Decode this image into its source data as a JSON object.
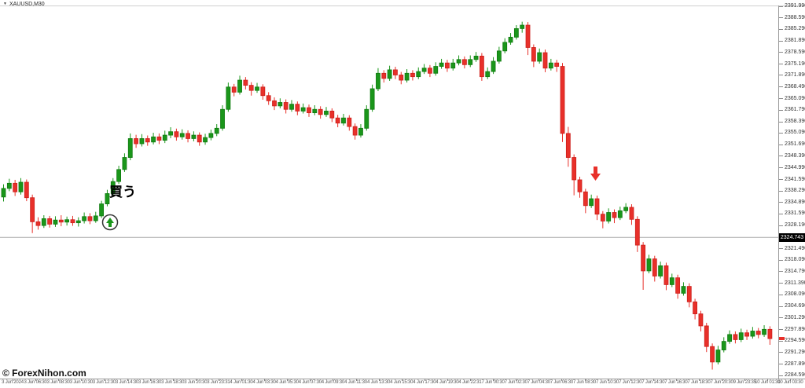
{
  "window": {
    "symbol_label": "XAUUSD,M30",
    "collapse_icon": "triangle-down-icon"
  },
  "watermark": "© ForexNihon.com",
  "annotations": {
    "buy_text": "買う",
    "buy_marker": "up-arrow-in-circle",
    "sell_marker": "down-arrow",
    "hline_price_label": "2324.743",
    "hline_price": 2324.743,
    "current_price_marker_price": 2295.3
  },
  "colors": {
    "bull_fill": "#1A961A",
    "bull_stroke": "#0F7A0F",
    "bear_fill": "#E8302A",
    "bear_stroke": "#CC1F1A",
    "hline": "#a8a8a8",
    "price_box_bg": "#000000",
    "price_box_text": "#ffffff",
    "marker_red": "#e8302a",
    "marker_circle_stroke": "#333333"
  },
  "chart_data": {
    "type": "candlestick",
    "title": "XAUUSD,M30",
    "symbol": "XAUUSD",
    "timeframe": "M30",
    "ylabel": "",
    "xlabel": "",
    "grid": false,
    "ylim": [
      2284.59,
      2391.99
    ],
    "y_ticks": [
      "2391.990",
      "2388.590",
      "2385.290",
      "2381.890",
      "2378.590",
      "2375.190",
      "2371.890",
      "2368.490",
      "2365.090",
      "2361.790",
      "2358.390",
      "2355.090",
      "2351.690",
      "2348.390",
      "2344.990",
      "2341.590",
      "2338.290",
      "2334.890",
      "2331.590",
      "2328.190",
      "2324.790",
      "2321.490",
      "2318.090",
      "2314.790",
      "2311.390",
      "2308.090",
      "2304.690",
      "2301.290",
      "2297.890",
      "2294.590",
      "2291.290",
      "2287.890",
      "2284.590"
    ],
    "x_ticks": [
      "3 Jun 2024",
      "3 Jun 06:30",
      "3 Jun 08:30",
      "3 Jun 10:30",
      "3 Jun 12:30",
      "3 Jun 14:30",
      "3 Jun 16:30",
      "3 Jun 18:30",
      "3 Jun 20:30",
      "3 Jun 23:31",
      "4 Jun 01:30",
      "4 Jun 03:30",
      "4 Jun 05:30",
      "4 Jun 07:30",
      "4 Jun 09:30",
      "4 Jun 11:30",
      "4 Jun 13:30",
      "4 Jun 15:30",
      "4 Jun 17:30",
      "4 Jun 19:30",
      "4 Jun 22:31",
      "7 Jun 00:30",
      "7 Jun 02:30",
      "7 Jun 04:30",
      "7 Jun 06:30",
      "7 Jun 08:30",
      "7 Jun 10:30",
      "7 Jun 12:30",
      "7 Jun 14:30",
      "7 Jun 16:30",
      "7 Jun 18:30",
      "7 Jun 20:30",
      "9 Jun 23:35",
      "10 Jun 01:30",
      "10 Jun 03:30"
    ],
    "ohlc": [
      [
        2336.5,
        2340.2,
        2335.2,
        2339.0
      ],
      [
        2339.0,
        2341.8,
        2338.2,
        2340.5
      ],
      [
        2340.5,
        2341.5,
        2336.8,
        2338.0
      ],
      [
        2338.0,
        2342.0,
        2337.2,
        2340.8
      ],
      [
        2340.8,
        2341.6,
        2335.3,
        2336.3
      ],
      [
        2336.3,
        2337.2,
        2326.0,
        2329.3
      ],
      [
        2329.3,
        2330.6,
        2327.0,
        2328.2
      ],
      [
        2328.2,
        2331.2,
        2327.5,
        2330.2
      ],
      [
        2330.2,
        2331.0,
        2327.6,
        2328.6
      ],
      [
        2328.6,
        2330.9,
        2327.8,
        2329.8
      ],
      [
        2329.8,
        2331.2,
        2328.0,
        2329.2
      ],
      [
        2329.2,
        2330.8,
        2328.2,
        2329.9
      ],
      [
        2329.9,
        2331.0,
        2328.1,
        2329.0
      ],
      [
        2329.0,
        2330.6,
        2327.9,
        2329.6
      ],
      [
        2329.6,
        2332.0,
        2328.8,
        2330.8
      ],
      [
        2330.8,
        2331.8,
        2328.6,
        2329.6
      ],
      [
        2329.6,
        2332.2,
        2329.0,
        2331.0
      ],
      [
        2331.0,
        2335.4,
        2330.4,
        2334.5
      ],
      [
        2334.5,
        2338.6,
        2333.8,
        2337.5
      ],
      [
        2337.5,
        2342.0,
        2336.8,
        2341.0
      ],
      [
        2341.0,
        2345.6,
        2340.3,
        2344.5
      ],
      [
        2344.5,
        2349.2,
        2343.8,
        2348.0
      ],
      [
        2348.0,
        2355.0,
        2347.2,
        2353.5
      ],
      [
        2353.5,
        2354.6,
        2350.8,
        2352.0
      ],
      [
        2352.0,
        2354.8,
        2351.2,
        2353.5
      ],
      [
        2353.5,
        2354.4,
        2351.4,
        2352.5
      ],
      [
        2352.5,
        2355.2,
        2351.8,
        2354.0
      ],
      [
        2354.0,
        2355.0,
        2351.9,
        2353.0
      ],
      [
        2353.0,
        2355.8,
        2352.2,
        2354.5
      ],
      [
        2354.5,
        2356.8,
        2353.6,
        2355.5
      ],
      [
        2355.5,
        2356.4,
        2352.9,
        2354.0
      ],
      [
        2354.0,
        2356.2,
        2353.2,
        2355.0
      ],
      [
        2355.0,
        2355.9,
        2352.4,
        2353.5
      ],
      [
        2353.5,
        2355.6,
        2352.7,
        2354.5
      ],
      [
        2354.5,
        2355.3,
        2351.4,
        2352.5
      ],
      [
        2352.5,
        2354.9,
        2351.7,
        2353.8
      ],
      [
        2353.8,
        2356.1,
        2353.0,
        2355.0
      ],
      [
        2355.0,
        2357.7,
        2354.2,
        2356.5
      ],
      [
        2356.5,
        2363.2,
        2355.8,
        2362.0
      ],
      [
        2362.0,
        2369.8,
        2361.3,
        2368.5
      ],
      [
        2368.5,
        2369.4,
        2365.8,
        2367.0
      ],
      [
        2367.0,
        2371.8,
        2366.3,
        2370.5
      ],
      [
        2370.5,
        2371.4,
        2367.8,
        2369.0
      ],
      [
        2369.0,
        2369.9,
        2366.0,
        2367.5
      ],
      [
        2367.5,
        2369.7,
        2366.8,
        2368.5
      ],
      [
        2368.5,
        2369.3,
        2364.8,
        2366.0
      ],
      [
        2366.0,
        2367.0,
        2363.3,
        2364.5
      ],
      [
        2364.5,
        2365.5,
        2361.8,
        2363.0
      ],
      [
        2363.0,
        2365.2,
        2362.3,
        2364.0
      ],
      [
        2364.0,
        2364.9,
        2360.8,
        2362.0
      ],
      [
        2362.0,
        2364.7,
        2361.3,
        2363.5
      ],
      [
        2363.5,
        2364.3,
        2360.3,
        2361.5
      ],
      [
        2361.5,
        2363.7,
        2360.8,
        2362.5
      ],
      [
        2362.5,
        2363.4,
        2359.8,
        2361.0
      ],
      [
        2361.0,
        2363.2,
        2360.3,
        2362.0
      ],
      [
        2362.0,
        2362.9,
        2359.3,
        2360.5
      ],
      [
        2360.5,
        2362.7,
        2359.8,
        2361.5
      ],
      [
        2361.5,
        2362.3,
        2358.3,
        2359.5
      ],
      [
        2359.5,
        2360.4,
        2356.8,
        2358.0
      ],
      [
        2358.0,
        2360.7,
        2357.3,
        2359.5
      ],
      [
        2359.5,
        2360.3,
        2355.8,
        2357.0
      ],
      [
        2357.0,
        2357.9,
        2353.2,
        2354.5
      ],
      [
        2354.5,
        2357.7,
        2353.8,
        2356.5
      ],
      [
        2356.5,
        2363.2,
        2355.8,
        2362.0
      ],
      [
        2362.0,
        2369.2,
        2361.3,
        2368.0
      ],
      [
        2368.0,
        2374.0,
        2367.3,
        2372.5
      ],
      [
        2372.5,
        2373.4,
        2369.8,
        2371.0
      ],
      [
        2371.0,
        2374.7,
        2370.3,
        2373.5
      ],
      [
        2373.5,
        2374.4,
        2370.8,
        2372.0
      ],
      [
        2372.0,
        2372.9,
        2369.3,
        2370.5
      ],
      [
        2370.5,
        2373.7,
        2369.8,
        2372.5
      ],
      [
        2372.5,
        2373.4,
        2370.4,
        2371.5
      ],
      [
        2371.5,
        2374.2,
        2370.8,
        2373.0
      ],
      [
        2373.0,
        2375.2,
        2372.3,
        2374.0
      ],
      [
        2374.0,
        2374.9,
        2371.4,
        2372.5
      ],
      [
        2372.5,
        2375.7,
        2371.8,
        2374.5
      ],
      [
        2374.5,
        2376.7,
        2373.8,
        2375.5
      ],
      [
        2375.5,
        2376.4,
        2372.9,
        2374.0
      ],
      [
        2374.0,
        2376.7,
        2373.3,
        2375.5
      ],
      [
        2375.5,
        2377.7,
        2374.8,
        2376.5
      ],
      [
        2376.5,
        2377.4,
        2373.9,
        2375.0
      ],
      [
        2375.0,
        2377.7,
        2374.3,
        2376.5
      ],
      [
        2376.5,
        2378.7,
        2375.8,
        2377.5
      ],
      [
        2377.5,
        2378.4,
        2370.3,
        2371.5
      ],
      [
        2371.5,
        2374.2,
        2370.8,
        2373.0
      ],
      [
        2373.0,
        2377.2,
        2372.3,
        2376.0
      ],
      [
        2376.0,
        2380.2,
        2375.3,
        2379.0
      ],
      [
        2379.0,
        2382.7,
        2378.3,
        2381.5
      ],
      [
        2381.5,
        2384.2,
        2380.8,
        2383.0
      ],
      [
        2383.0,
        2386.5,
        2382.3,
        2385.5
      ],
      [
        2385.5,
        2387.5,
        2384.3,
        2386.5
      ],
      [
        2386.5,
        2387.4,
        2377.8,
        2380.0
      ],
      [
        2380.0,
        2380.9,
        2374.3,
        2376.0
      ],
      [
        2376.0,
        2379.7,
        2375.3,
        2378.5
      ],
      [
        2378.5,
        2379.4,
        2372.8,
        2374.0
      ],
      [
        2374.0,
        2376.7,
        2373.3,
        2375.5
      ],
      [
        2375.5,
        2376.4,
        2372.9,
        2374.5
      ],
      [
        2374.5,
        2375.5,
        2352.5,
        2355.0
      ],
      [
        2355.0,
        2356.9,
        2345.3,
        2348.0
      ],
      [
        2348.0,
        2348.9,
        2337.0,
        2341.5
      ],
      [
        2341.5,
        2342.4,
        2336.3,
        2338.0
      ],
      [
        2338.0,
        2338.9,
        2331.8,
        2334.0
      ],
      [
        2334.0,
        2337.2,
        2333.3,
        2336.0
      ],
      [
        2336.0,
        2336.9,
        2329.8,
        2331.5
      ],
      [
        2331.5,
        2332.4,
        2327.4,
        2329.5
      ],
      [
        2329.5,
        2333.2,
        2328.8,
        2332.0
      ],
      [
        2332.0,
        2332.9,
        2328.9,
        2330.5
      ],
      [
        2330.5,
        2333.7,
        2329.8,
        2332.5
      ],
      [
        2332.5,
        2334.7,
        2331.8,
        2333.5
      ],
      [
        2333.5,
        2334.4,
        2328.4,
        2330.0
      ],
      [
        2330.0,
        2330.9,
        2320.5,
        2322.5
      ],
      [
        2322.5,
        2323.4,
        2309.5,
        2315.0
      ],
      [
        2315.0,
        2319.7,
        2314.3,
        2318.5
      ],
      [
        2318.5,
        2319.4,
        2311.9,
        2313.5
      ],
      [
        2313.5,
        2317.7,
        2312.8,
        2316.5
      ],
      [
        2316.5,
        2317.4,
        2309.4,
        2311.0
      ],
      [
        2311.0,
        2314.2,
        2310.3,
        2313.0
      ],
      [
        2313.0,
        2313.9,
        2306.9,
        2308.5
      ],
      [
        2308.5,
        2311.7,
        2307.8,
        2310.5
      ],
      [
        2310.5,
        2311.4,
        2304.4,
        2306.0
      ],
      [
        2306.0,
        2306.9,
        2300.9,
        2302.5
      ],
      [
        2302.5,
        2303.4,
        2297.4,
        2299.0
      ],
      [
        2299.0,
        2299.9,
        2291.4,
        2293.0
      ],
      [
        2293.0,
        2293.9,
        2286.3,
        2288.5
      ],
      [
        2288.5,
        2293.2,
        2287.8,
        2292.0
      ],
      [
        2292.0,
        2295.7,
        2291.3,
        2294.5
      ],
      [
        2294.5,
        2297.7,
        2293.8,
        2296.5
      ],
      [
        2296.5,
        2297.4,
        2293.9,
        2295.0
      ],
      [
        2295.0,
        2298.2,
        2294.3,
        2297.0
      ],
      [
        2297.0,
        2297.9,
        2294.9,
        2296.0
      ],
      [
        2296.0,
        2298.7,
        2295.3,
        2297.5
      ],
      [
        2297.5,
        2298.4,
        2295.4,
        2296.5
      ],
      [
        2296.5,
        2299.2,
        2295.8,
        2298.0
      ],
      [
        2298.0,
        2298.9,
        2293.5,
        2295.3
      ]
    ]
  }
}
